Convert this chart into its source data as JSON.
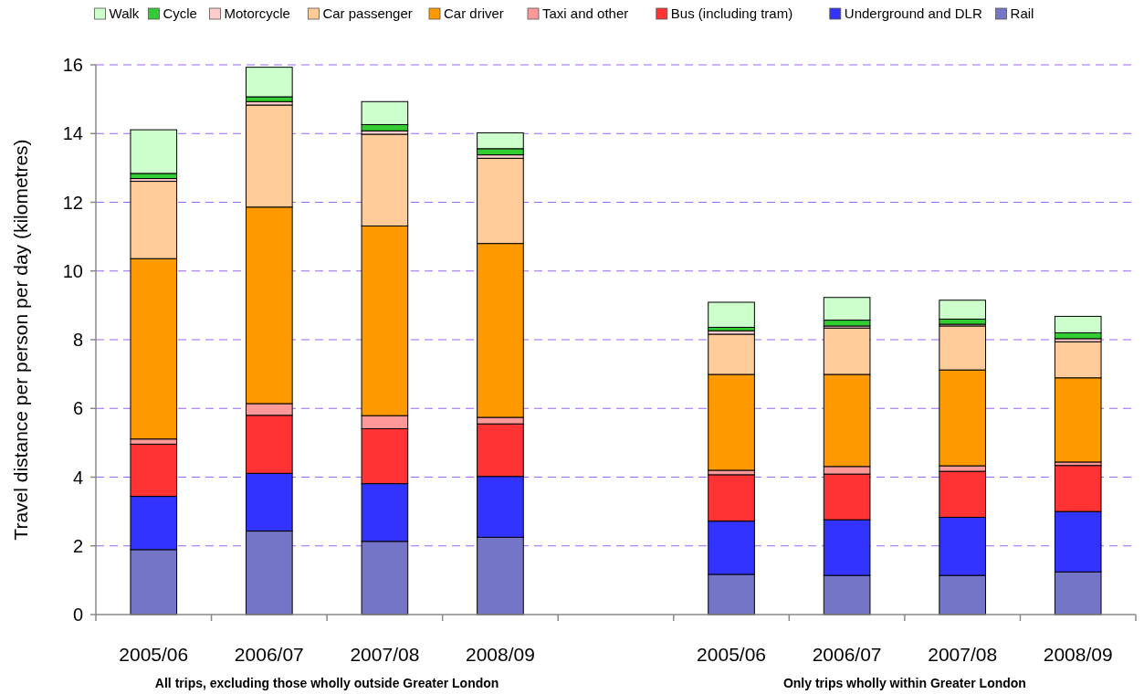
{
  "chart_data": {
    "type": "bar",
    "stacked": true,
    "ylabel": "Travel distance per person per day (kilometres)",
    "categories": [
      "2005/06",
      "2006/07",
      "2007/08",
      "2008/09",
      null,
      "2005/06",
      "2006/07",
      "2007/08",
      "2008/09"
    ],
    "series": [
      {
        "name": "Rail",
        "color": "#7575c8",
        "values": [
          1.89,
          2.43,
          2.13,
          2.25,
          null,
          1.17,
          1.14,
          1.14,
          1.24
        ]
      },
      {
        "name": "Underground and DLR",
        "color": "#3333ff",
        "values": [
          1.55,
          1.68,
          1.68,
          1.77,
          null,
          1.55,
          1.62,
          1.69,
          1.76
        ]
      },
      {
        "name": "Bus (including tram)",
        "color": "#ff3333",
        "values": [
          1.52,
          1.69,
          1.6,
          1.53,
          null,
          1.35,
          1.33,
          1.34,
          1.34
        ]
      },
      {
        "name": "Taxi and other",
        "color": "#ff9999",
        "values": [
          0.15,
          0.34,
          0.38,
          0.19,
          null,
          0.13,
          0.22,
          0.16,
          0.1
        ]
      },
      {
        "name": "Car driver",
        "color": "#ff9900",
        "values": [
          5.25,
          5.72,
          5.52,
          5.06,
          null,
          2.79,
          2.68,
          2.79,
          2.45
        ]
      },
      {
        "name": "Car passenger",
        "color": "#ffcc99",
        "values": [
          2.25,
          2.97,
          2.67,
          2.48,
          null,
          1.17,
          1.35,
          1.28,
          1.05
        ]
      },
      {
        "name": "Motorcycle",
        "color": "#ffcccc",
        "values": [
          0.08,
          0.1,
          0.1,
          0.1,
          null,
          0.1,
          0.06,
          0.05,
          0.09
        ]
      },
      {
        "name": "Cycle",
        "color": "#33cc33",
        "values": [
          0.15,
          0.14,
          0.18,
          0.18,
          null,
          0.1,
          0.17,
          0.15,
          0.17
        ]
      },
      {
        "name": "Walk",
        "color": "#ccffcc",
        "values": [
          1.27,
          0.86,
          0.67,
          0.46,
          null,
          0.73,
          0.66,
          0.55,
          0.48
        ]
      }
    ],
    "ylim": [
      0,
      16
    ],
    "yticks": [
      0,
      2,
      4,
      6,
      8,
      10,
      12,
      14,
      16
    ],
    "grid": "y",
    "legend": "top",
    "annotations": [
      "All trips, excluding those wholly outside Greater London",
      "Only trips  wholly within Greater London"
    ]
  }
}
